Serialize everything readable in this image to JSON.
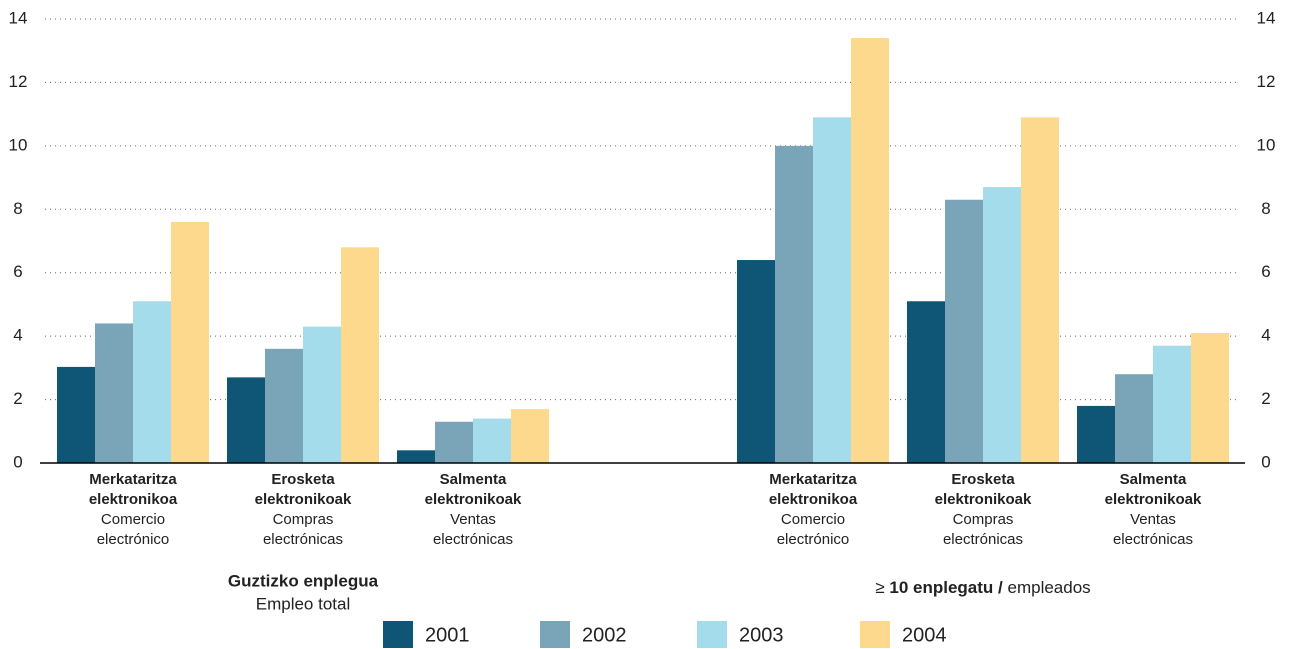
{
  "chart_data": {
    "type": "bar",
    "groups": [
      {
        "title": "Guztizko enplegua",
        "subtitle": "Empleo total",
        "categories": [
          {
            "label": [
              "Merkataritza",
              "elektronikoa"
            ],
            "sublabel": [
              "Comercio",
              "electrónico"
            ]
          },
          {
            "label": [
              "Erosketa",
              "elektronikoak"
            ],
            "sublabel": [
              "Compras",
              "electrónicas"
            ]
          },
          {
            "label": [
              "Salmenta",
              "elektronikoak"
            ],
            "sublabel": [
              "Ventas",
              "electrónicas"
            ]
          }
        ]
      },
      {
        "prefix": "≥",
        "title": "10 enplegatu /",
        "subtitle": "empleados",
        "categories": [
          {
            "label": [
              "Merkataritza",
              "elektronikoa"
            ],
            "sublabel": [
              "Comercio",
              "electrónico"
            ]
          },
          {
            "label": [
              "Erosketa",
              "elektronikoak"
            ],
            "sublabel": [
              "Compras",
              "electrónicas"
            ]
          },
          {
            "label": [
              "Salmenta",
              "elektronikoak"
            ],
            "sublabel": [
              "Ventas",
              "electrónicas"
            ]
          }
        ]
      }
    ],
    "series": [
      {
        "name": "2001",
        "color": "#0f5575",
        "values": [
          [
            3.03,
            2.7,
            0.4
          ],
          [
            6.4,
            5.1,
            1.8
          ]
        ]
      },
      {
        "name": "2002",
        "color": "#7aa5b8",
        "values": [
          [
            4.4,
            3.6,
            1.3
          ],
          [
            10.0,
            8.3,
            2.8
          ]
        ]
      },
      {
        "name": "2003",
        "color": "#a4dcec",
        "values": [
          [
            5.1,
            4.3,
            1.4
          ],
          [
            10.9,
            8.7,
            3.7
          ]
        ]
      },
      {
        "name": "2004",
        "color": "#fdd98d",
        "values": [
          [
            7.6,
            6.8,
            1.7
          ],
          [
            13.4,
            10.9,
            4.1
          ]
        ]
      }
    ],
    "ylim": [
      0,
      14
    ],
    "yticks": [
      0,
      2,
      4,
      6,
      8,
      10,
      12,
      14
    ],
    "y2lim": [
      0,
      14
    ],
    "y2ticks": [
      0,
      2,
      4,
      6,
      8,
      10,
      12,
      14
    ],
    "grid": true
  }
}
